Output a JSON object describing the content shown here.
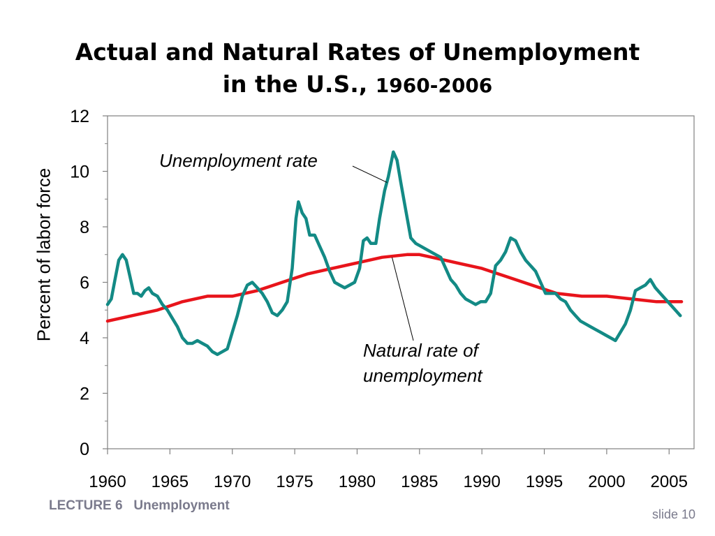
{
  "slide": {
    "title_line1": "Actual and Natural Rates of Unemployment",
    "title_line2": "in the U.S., ",
    "title_years": "1960-2006",
    "footer_lecture": "LECTURE 6   Unemployment",
    "slide_number": "slide 10"
  },
  "colors": {
    "unemployment": "#138a85",
    "natural": "#e8141b",
    "axis": "#808080",
    "text": "#000000",
    "footer": "#7a7a8c"
  },
  "chart_data": {
    "type": "line",
    "title": "Actual and Natural Rates of Unemployment in the U.S., 1960-2006",
    "xlabel": "",
    "ylabel": "Percent of labor force",
    "xlim": [
      1960,
      2007
    ],
    "ylim": [
      0,
      12
    ],
    "x_ticks": [
      1960,
      1965,
      1970,
      1975,
      1980,
      1985,
      1990,
      1995,
      2000,
      2005
    ],
    "y_ticks": [
      0,
      2,
      4,
      6,
      8,
      10,
      12
    ],
    "grid": false,
    "legend": "none",
    "annotations": [
      {
        "text": "Unemployment rate",
        "series": "Unemployment rate",
        "point": [
          1982.4,
          9.6
        ]
      },
      {
        "text": "Natural rate of unemployment",
        "series": "Natural rate of unemployment",
        "point": [
          1982.8,
          6.9
        ]
      }
    ],
    "series": [
      {
        "name": "Unemployment rate",
        "points": [
          [
            1960.0,
            5.2
          ],
          [
            1960.3,
            5.4
          ],
          [
            1960.6,
            6.1
          ],
          [
            1960.9,
            6.8
          ],
          [
            1961.2,
            7.0
          ],
          [
            1961.5,
            6.8
          ],
          [
            1961.8,
            6.2
          ],
          [
            1962.1,
            5.6
          ],
          [
            1962.4,
            5.6
          ],
          [
            1962.7,
            5.5
          ],
          [
            1963.0,
            5.7
          ],
          [
            1963.3,
            5.8
          ],
          [
            1963.6,
            5.6
          ],
          [
            1964.0,
            5.5
          ],
          [
            1964.4,
            5.2
          ],
          [
            1964.8,
            5.0
          ],
          [
            1965.2,
            4.7
          ],
          [
            1965.6,
            4.4
          ],
          [
            1966.0,
            4.0
          ],
          [
            1966.4,
            3.8
          ],
          [
            1966.8,
            3.8
          ],
          [
            1967.2,
            3.9
          ],
          [
            1967.6,
            3.8
          ],
          [
            1968.0,
            3.7
          ],
          [
            1968.4,
            3.5
          ],
          [
            1968.8,
            3.4
          ],
          [
            1969.2,
            3.5
          ],
          [
            1969.6,
            3.6
          ],
          [
            1970.0,
            4.2
          ],
          [
            1970.4,
            4.8
          ],
          [
            1970.8,
            5.5
          ],
          [
            1971.2,
            5.9
          ],
          [
            1971.6,
            6.0
          ],
          [
            1972.0,
            5.8
          ],
          [
            1972.4,
            5.6
          ],
          [
            1972.8,
            5.3
          ],
          [
            1973.2,
            4.9
          ],
          [
            1973.6,
            4.8
          ],
          [
            1974.0,
            5.0
          ],
          [
            1974.4,
            5.3
          ],
          [
            1974.8,
            6.5
          ],
          [
            1975.1,
            8.3
          ],
          [
            1975.3,
            8.9
          ],
          [
            1975.6,
            8.5
          ],
          [
            1975.9,
            8.3
          ],
          [
            1976.2,
            7.7
          ],
          [
            1976.6,
            7.7
          ],
          [
            1977.0,
            7.3
          ],
          [
            1977.4,
            6.9
          ],
          [
            1977.8,
            6.4
          ],
          [
            1978.2,
            6.0
          ],
          [
            1978.6,
            5.9
          ],
          [
            1979.0,
            5.8
          ],
          [
            1979.4,
            5.9
          ],
          [
            1979.8,
            6.0
          ],
          [
            1980.2,
            6.5
          ],
          [
            1980.5,
            7.5
          ],
          [
            1980.8,
            7.6
          ],
          [
            1981.1,
            7.4
          ],
          [
            1981.5,
            7.4
          ],
          [
            1981.8,
            8.3
          ],
          [
            1982.2,
            9.3
          ],
          [
            1982.5,
            9.8
          ],
          [
            1982.9,
            10.7
          ],
          [
            1983.2,
            10.4
          ],
          [
            1983.5,
            9.6
          ],
          [
            1983.9,
            8.6
          ],
          [
            1984.3,
            7.6
          ],
          [
            1984.7,
            7.4
          ],
          [
            1985.1,
            7.3
          ],
          [
            1985.5,
            7.2
          ],
          [
            1985.9,
            7.1
          ],
          [
            1986.3,
            7.0
          ],
          [
            1986.7,
            6.9
          ],
          [
            1987.1,
            6.5
          ],
          [
            1987.5,
            6.1
          ],
          [
            1987.9,
            5.9
          ],
          [
            1988.3,
            5.6
          ],
          [
            1988.7,
            5.4
          ],
          [
            1989.1,
            5.3
          ],
          [
            1989.5,
            5.2
          ],
          [
            1989.9,
            5.3
          ],
          [
            1990.3,
            5.3
          ],
          [
            1990.7,
            5.6
          ],
          [
            1991.1,
            6.6
          ],
          [
            1991.5,
            6.8
          ],
          [
            1991.9,
            7.1
          ],
          [
            1992.3,
            7.6
          ],
          [
            1992.7,
            7.5
          ],
          [
            1993.1,
            7.1
          ],
          [
            1993.5,
            6.8
          ],
          [
            1993.9,
            6.6
          ],
          [
            1994.3,
            6.4
          ],
          [
            1994.7,
            6.0
          ],
          [
            1995.1,
            5.6
          ],
          [
            1995.5,
            5.6
          ],
          [
            1995.9,
            5.6
          ],
          [
            1996.3,
            5.4
          ],
          [
            1996.7,
            5.3
          ],
          [
            1997.1,
            5.0
          ],
          [
            1997.5,
            4.8
          ],
          [
            1997.9,
            4.6
          ],
          [
            1998.3,
            4.5
          ],
          [
            1998.7,
            4.4
          ],
          [
            1999.1,
            4.3
          ],
          [
            1999.5,
            4.2
          ],
          [
            1999.9,
            4.1
          ],
          [
            2000.3,
            4.0
          ],
          [
            2000.7,
            3.9
          ],
          [
            2001.1,
            4.2
          ],
          [
            2001.5,
            4.5
          ],
          [
            2001.9,
            5.0
          ],
          [
            2002.3,
            5.7
          ],
          [
            2002.7,
            5.8
          ],
          [
            2003.1,
            5.9
          ],
          [
            2003.5,
            6.1
          ],
          [
            2003.9,
            5.8
          ],
          [
            2004.3,
            5.6
          ],
          [
            2004.7,
            5.4
          ],
          [
            2005.1,
            5.2
          ],
          [
            2005.5,
            5.0
          ],
          [
            2005.9,
            4.8
          ]
        ]
      },
      {
        "name": "Natural rate of unemployment",
        "points": [
          [
            1960.0,
            4.6
          ],
          [
            1962.0,
            4.8
          ],
          [
            1964.0,
            5.0
          ],
          [
            1966.0,
            5.3
          ],
          [
            1968.0,
            5.5
          ],
          [
            1970.0,
            5.5
          ],
          [
            1972.0,
            5.7
          ],
          [
            1974.0,
            6.0
          ],
          [
            1976.0,
            6.3
          ],
          [
            1978.0,
            6.5
          ],
          [
            1980.0,
            6.7
          ],
          [
            1982.0,
            6.9
          ],
          [
            1984.0,
            7.0
          ],
          [
            1985.0,
            7.0
          ],
          [
            1986.0,
            6.9
          ],
          [
            1988.0,
            6.7
          ],
          [
            1990.0,
            6.5
          ],
          [
            1992.0,
            6.2
          ],
          [
            1994.0,
            5.9
          ],
          [
            1996.0,
            5.6
          ],
          [
            1998.0,
            5.5
          ],
          [
            2000.0,
            5.5
          ],
          [
            2002.0,
            5.4
          ],
          [
            2004.0,
            5.3
          ],
          [
            2006.0,
            5.3
          ]
        ]
      }
    ]
  }
}
